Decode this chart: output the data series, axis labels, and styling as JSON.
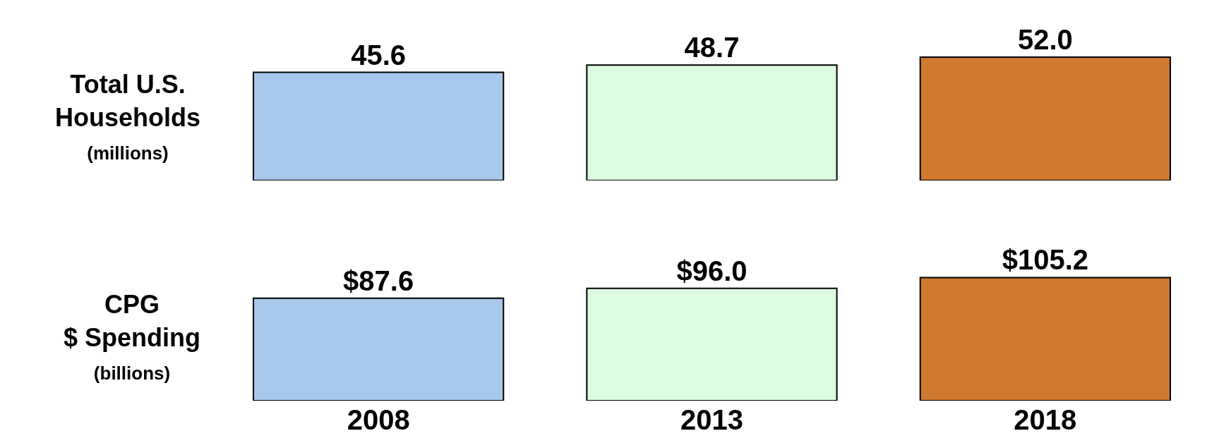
{
  "chart_data": [
    {
      "type": "bar",
      "ylabel": "Total U.S.\nHouseholds\n(millions)",
      "categories": [
        "2008",
        "2013",
        "2018"
      ],
      "values": [
        45.6,
        48.7,
        52.0
      ],
      "value_labels": [
        "45.6",
        "48.7",
        "52.0"
      ],
      "colors": [
        "#a8c8ec",
        "#dcfbe0",
        "#cf7a30"
      ],
      "tick_labels": false
    },
    {
      "type": "bar",
      "ylabel": "CPG\n$ Spending\n(billions)",
      "categories": [
        "2008",
        "2013",
        "2018"
      ],
      "values": [
        87.6,
        96.0,
        105.2
      ],
      "value_labels": [
        "$87.6",
        "$96.0",
        "$105.2"
      ],
      "colors": [
        "#a8c8ec",
        "#dcfbe0",
        "#cf7a30"
      ],
      "tick_labels": "x"
    }
  ]
}
